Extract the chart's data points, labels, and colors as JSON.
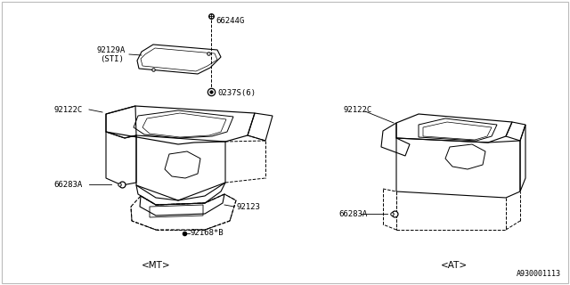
{
  "bg_color": "#ffffff",
  "line_color": "#000000",
  "fig_width": 6.4,
  "fig_height": 3.2,
  "dpi": 100,
  "diagram_id": "A930001113",
  "mt_label": "<MT>",
  "at_label": "<AT>",
  "label_fs": 7.5,
  "part_fs": 6.5
}
